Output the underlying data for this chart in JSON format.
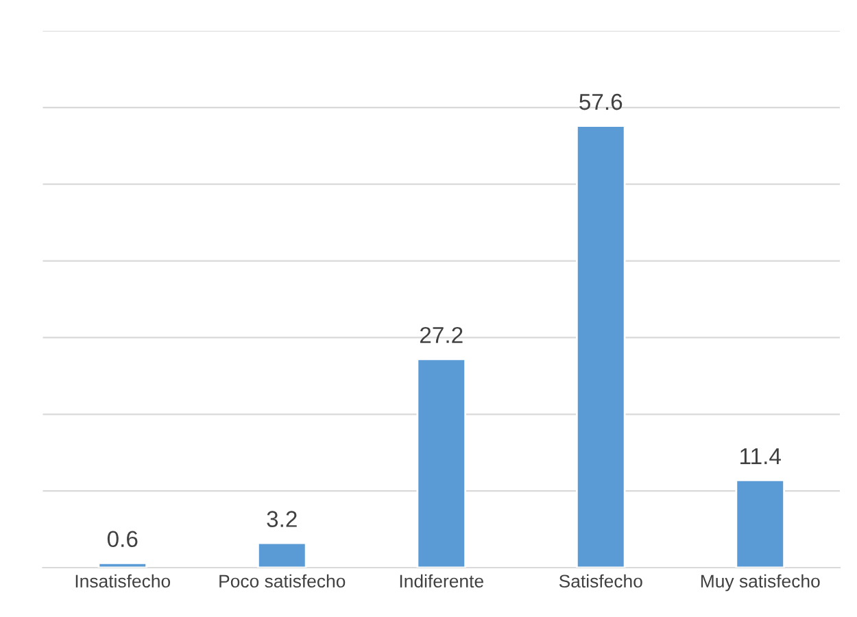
{
  "chart_data": {
    "type": "bar",
    "categories": [
      "Insatisfecho",
      "Poco satisfecho",
      "Indiferente",
      "Satisfecho",
      "Muy satisfecho"
    ],
    "values": [
      0.6,
      3.2,
      27.2,
      57.6,
      11.4
    ],
    "color": "#5b9bd5",
    "ylim": [
      0,
      70
    ],
    "yticks": [
      {
        "value": 0,
        "label": null
      },
      {
        "value": 10,
        "label": null
      },
      {
        "value": 20,
        "label": null
      },
      {
        "value": 30,
        "label": null
      },
      {
        "value": 40,
        "label": null
      },
      {
        "value": 50,
        "label": null
      },
      {
        "value": 60,
        "label": null
      },
      {
        "value": 70,
        "label": null
      }
    ],
    "tick_labels": "x",
    "grid": "y",
    "data_labels": true
  }
}
